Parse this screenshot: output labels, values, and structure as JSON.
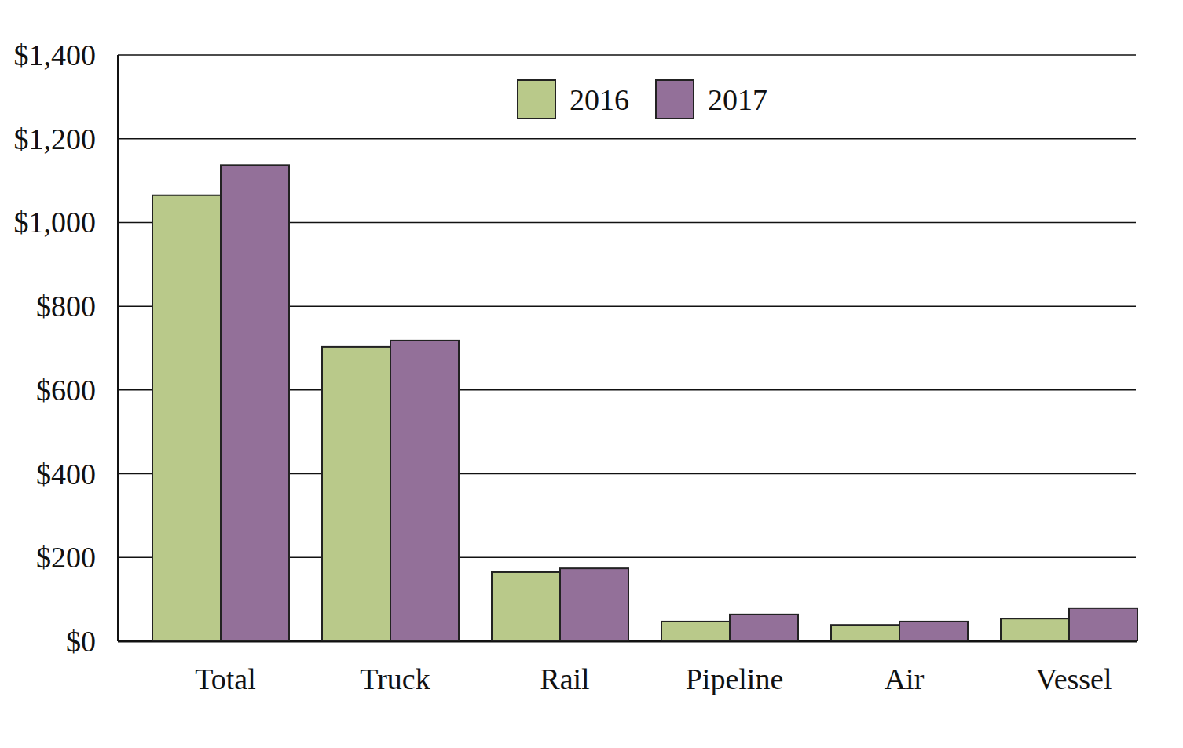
{
  "chart_data": {
    "type": "bar",
    "categories": [
      "Total",
      "Truck",
      "Rail",
      "Pipeline",
      "Air",
      "Vessel"
    ],
    "series": [
      {
        "name": "2016",
        "color": "#b9c98a",
        "values": [
          1065,
          703,
          165,
          47,
          39,
          54
        ]
      },
      {
        "name": "2017",
        "color": "#937099",
        "values": [
          1137,
          718,
          174,
          64,
          47,
          79
        ]
      }
    ],
    "ylim": [
      0,
      1400
    ],
    "yticks": [
      {
        "value": 0,
        "label": "$0"
      },
      {
        "value": 200,
        "label": "$200"
      },
      {
        "value": 400,
        "label": "$400"
      },
      {
        "value": 600,
        "label": "$600"
      },
      {
        "value": 800,
        "label": "$800"
      },
      {
        "value": 1000,
        "label": "$1,000"
      },
      {
        "value": 1200,
        "label": "$1,200"
      },
      {
        "value": 1400,
        "label": "$1,400"
      }
    ],
    "grid": true,
    "legend": "top"
  }
}
